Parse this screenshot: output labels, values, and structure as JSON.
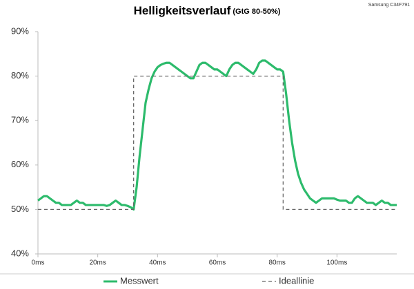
{
  "chart_data": {
    "type": "line",
    "title": "Helligkeitsverlauf",
    "subtitle": "(GtG 80-50%)",
    "annotation": "Samsung C34F791",
    "xlim": [
      0,
      120
    ],
    "ylim": [
      40,
      90
    ],
    "xticks": [
      {
        "value": 0,
        "label": "0ms"
      },
      {
        "value": 20,
        "label": "20ms"
      },
      {
        "value": 40,
        "label": "40ms"
      },
      {
        "value": 60,
        "label": "60ms"
      },
      {
        "value": 80,
        "label": "80ms"
      },
      {
        "value": 100,
        "label": "100ms"
      }
    ],
    "yticks": [
      {
        "value": 40,
        "label": "40%"
      },
      {
        "value": 50,
        "label": "50%"
      },
      {
        "value": 60,
        "label": "60%"
      },
      {
        "value": 70,
        "label": "70%"
      },
      {
        "value": 80,
        "label": "80%"
      },
      {
        "value": 90,
        "label": "90%"
      }
    ],
    "grid": false,
    "series": [
      {
        "name": "Messwert",
        "color": "#2dbb6c",
        "dashed": false,
        "x": [
          0,
          1,
          2,
          3,
          4,
          5,
          6,
          7,
          8,
          9,
          10,
          11,
          12,
          13,
          14,
          15,
          16,
          17,
          18,
          19,
          20,
          21,
          22,
          23,
          24,
          25,
          26,
          27,
          28,
          29,
          30,
          31,
          32,
          33,
          34,
          35,
          36,
          37,
          38,
          39,
          40,
          41,
          42,
          43,
          44,
          45,
          46,
          47,
          48,
          49,
          50,
          51,
          52,
          53,
          54,
          55,
          56,
          57,
          58,
          59,
          60,
          61,
          62,
          63,
          64,
          65,
          66,
          67,
          68,
          69,
          70,
          71,
          72,
          73,
          74,
          75,
          76,
          77,
          78,
          79,
          80,
          81,
          82,
          83,
          84,
          85,
          86,
          87,
          88,
          89,
          90,
          91,
          92,
          93,
          94,
          95,
          96,
          97,
          98,
          99,
          100,
          101,
          102,
          103,
          104,
          105,
          106,
          107,
          108,
          109,
          110,
          111,
          112,
          113,
          114,
          115,
          116,
          117,
          118,
          119,
          120
        ],
        "values": [
          52,
          52.5,
          53,
          53,
          52.5,
          52,
          51.5,
          51.5,
          51,
          51,
          51,
          51,
          51.5,
          52,
          51.5,
          51.5,
          51,
          51,
          51,
          51,
          51,
          51,
          51,
          50.8,
          51,
          51.5,
          52,
          51.5,
          51,
          51,
          50.8,
          50.5,
          50,
          55,
          62,
          68,
          74,
          77,
          79.5,
          81,
          82,
          82.5,
          82.8,
          83,
          83,
          82.5,
          82,
          81.5,
          81,
          80.5,
          80,
          79.5,
          79.5,
          81,
          82.5,
          83,
          83,
          82.5,
          82,
          81.5,
          81.5,
          81,
          80.5,
          80,
          81.5,
          82.5,
          83,
          83,
          82.5,
          82,
          81.5,
          81,
          80.5,
          81.5,
          83,
          83.5,
          83.5,
          83,
          82.5,
          82,
          81.5,
          81.5,
          81,
          76,
          70,
          65,
          61,
          58,
          56,
          54.5,
          53.5,
          52.5,
          52,
          51.5,
          52,
          52.5,
          52.5,
          52.5,
          52.5,
          52.5,
          52.2,
          52,
          52,
          52,
          51.5,
          51.5,
          52.5,
          53,
          52.5,
          52,
          51.5,
          51.5,
          51.5,
          51,
          51.5,
          52,
          51.5,
          51.5,
          51,
          51,
          51
        ]
      },
      {
        "name": "Ideallinie",
        "color": "#666666",
        "dashed": true,
        "x": [
          0,
          32,
          32,
          82,
          82,
          120
        ],
        "values": [
          50,
          50,
          80,
          80,
          50,
          50
        ]
      }
    ]
  }
}
